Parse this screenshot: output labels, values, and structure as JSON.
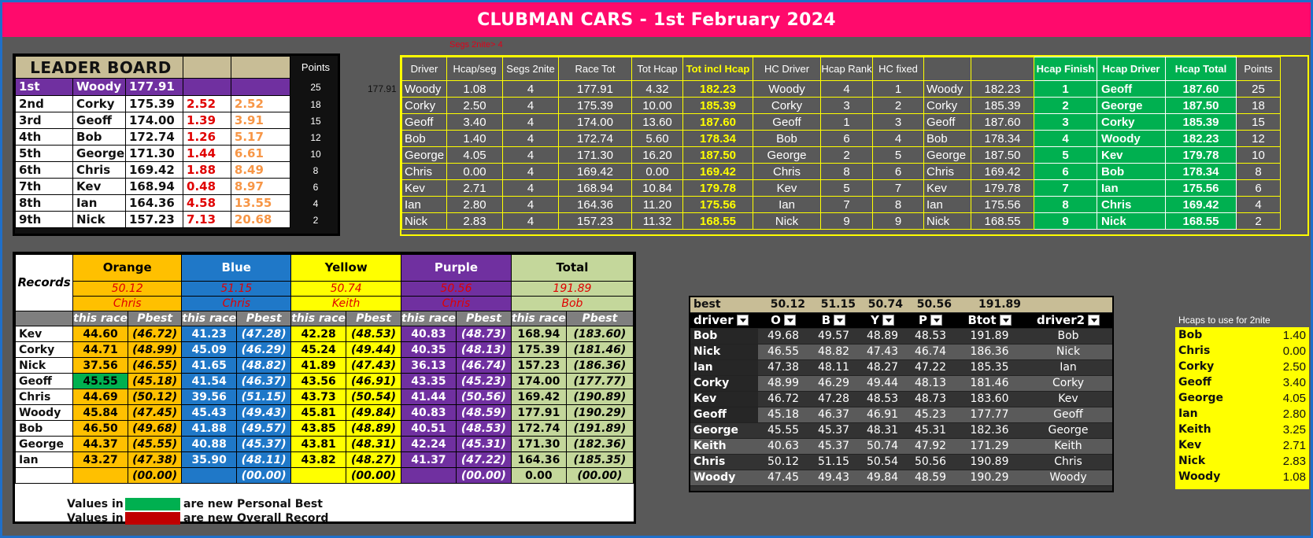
{
  "title": "CLUBMAN CARS - 1st February 2024",
  "segs_note": "Segs 2nite>    4",
  "leaderboard": {
    "title": "LEADER BOARD",
    "points_header": "Points",
    "side_value": "177.91",
    "rows": [
      {
        "pos": "1st",
        "name": "Woody",
        "total": "177.91",
        "gap": "",
        "cum": "",
        "points": "25"
      },
      {
        "pos": "2nd",
        "name": "Corky",
        "total": "175.39",
        "gap": "2.52",
        "cum": "2.52",
        "points": "18"
      },
      {
        "pos": "3rd",
        "name": "Geoff",
        "total": "174.00",
        "gap": "1.39",
        "cum": "3.91",
        "points": "15"
      },
      {
        "pos": "4th",
        "name": "Bob",
        "total": "172.74",
        "gap": "1.26",
        "cum": "5.17",
        "points": "12"
      },
      {
        "pos": "5th",
        "name": "George",
        "total": "171.30",
        "gap": "1.44",
        "cum": "6.61",
        "points": "10"
      },
      {
        "pos": "6th",
        "name": "Chris",
        "total": "169.42",
        "gap": "1.88",
        "cum": "8.49",
        "points": "8"
      },
      {
        "pos": "7th",
        "name": "Kev",
        "total": "168.94",
        "gap": "0.48",
        "cum": "8.97",
        "points": "6"
      },
      {
        "pos": "8th",
        "name": "Ian",
        "total": "164.36",
        "gap": "4.58",
        "cum": "13.55",
        "points": "4"
      },
      {
        "pos": "9th",
        "name": "Nick",
        "total": "157.23",
        "gap": "7.13",
        "cum": "20.68",
        "points": "2"
      }
    ]
  },
  "results": {
    "headers": [
      "Driver",
      "Hcap/seg",
      "Segs 2nite",
      "Race Tot",
      "Tot Hcap",
      "Tot incl Hcap",
      "HC Driver",
      "Hcap Rank",
      "HC fixed",
      "",
      "",
      "Hcap Finish",
      "Hcap Driver",
      "Hcap Total",
      "Points"
    ],
    "rows": [
      [
        "Woody",
        "1.08",
        "4",
        "177.91",
        "4.32",
        "182.23",
        "Woody",
        "4",
        "1",
        "Woody",
        "182.23",
        "1",
        "Geoff",
        "187.60",
        "25"
      ],
      [
        "Corky",
        "2.50",
        "4",
        "175.39",
        "10.00",
        "185.39",
        "Corky",
        "3",
        "2",
        "Corky",
        "185.39",
        "2",
        "George",
        "187.50",
        "18"
      ],
      [
        "Geoff",
        "3.40",
        "4",
        "174.00",
        "13.60",
        "187.60",
        "Geoff",
        "1",
        "3",
        "Geoff",
        "187.60",
        "3",
        "Corky",
        "185.39",
        "15"
      ],
      [
        "Bob",
        "1.40",
        "4",
        "172.74",
        "5.60",
        "178.34",
        "Bob",
        "6",
        "4",
        "Bob",
        "178.34",
        "4",
        "Woody",
        "182.23",
        "12"
      ],
      [
        "George",
        "4.05",
        "4",
        "171.30",
        "16.20",
        "187.50",
        "George",
        "2",
        "5",
        "George",
        "187.50",
        "5",
        "Kev",
        "179.78",
        "10"
      ],
      [
        "Chris",
        "0.00",
        "4",
        "169.42",
        "0.00",
        "169.42",
        "Chris",
        "8",
        "6",
        "Chris",
        "169.42",
        "6",
        "Bob",
        "178.34",
        "8"
      ],
      [
        "Kev",
        "2.71",
        "4",
        "168.94",
        "10.84",
        "179.78",
        "Kev",
        "5",
        "7",
        "Kev",
        "179.78",
        "7",
        "Ian",
        "175.56",
        "6"
      ],
      [
        "Ian",
        "2.80",
        "4",
        "164.36",
        "11.20",
        "175.56",
        "Ian",
        "7",
        "8",
        "Ian",
        "175.56",
        "8",
        "Chris",
        "169.42",
        "4"
      ],
      [
        "Nick",
        "2.83",
        "4",
        "157.23",
        "11.32",
        "168.55",
        "Nick",
        "9",
        "9",
        "Nick",
        "168.55",
        "9",
        "Nick",
        "168.55",
        "2"
      ]
    ]
  },
  "records": {
    "label": "Records",
    "colors": [
      "Orange",
      "Blue",
      "Yellow",
      "Purple",
      "Total"
    ],
    "record_values": [
      "50.12",
      "51.15",
      "50.74",
      "50.56",
      "191.89"
    ],
    "record_holders": [
      "Chris",
      "Chris",
      "Keith",
      "Chris",
      "Bob"
    ],
    "sub_headers": [
      "this race",
      "Pbest",
      "this race",
      "Pbest",
      "this race",
      "Pbest",
      "this race",
      "Pbest",
      "this race",
      "Pbest"
    ],
    "rows": [
      {
        "name": "Kev",
        "v": [
          "44.60",
          "(46.72)",
          "41.23",
          "(47.28)",
          "42.28",
          "(48.53)",
          "40.83",
          "(48.73)",
          "168.94",
          "(183.60)"
        ]
      },
      {
        "name": "Corky",
        "v": [
          "44.71",
          "(48.99)",
          "45.09",
          "(46.29)",
          "45.24",
          "(49.44)",
          "40.35",
          "(48.13)",
          "175.39",
          "(181.46)"
        ]
      },
      {
        "name": "Nick",
        "v": [
          "37.56",
          "(46.55)",
          "41.65",
          "(48.82)",
          "41.89",
          "(47.43)",
          "36.13",
          "(46.74)",
          "157.23",
          "(186.36)"
        ]
      },
      {
        "name": "Geoff",
        "v": [
          "45.55",
          "(45.18)",
          "41.54",
          "(46.37)",
          "43.56",
          "(46.91)",
          "43.35",
          "(45.23)",
          "174.00",
          "(177.77)"
        ]
      },
      {
        "name": "Chris",
        "v": [
          "44.69",
          "(50.12)",
          "39.56",
          "(51.15)",
          "43.73",
          "(50.54)",
          "41.44",
          "(50.56)",
          "169.42",
          "(190.89)"
        ]
      },
      {
        "name": "Woody",
        "v": [
          "45.84",
          "(47.45)",
          "45.43",
          "(49.43)",
          "45.81",
          "(49.84)",
          "40.83",
          "(48.59)",
          "177.91",
          "(190.29)"
        ]
      },
      {
        "name": "Bob",
        "v": [
          "46.50",
          "(49.68)",
          "41.88",
          "(49.57)",
          "43.85",
          "(48.89)",
          "40.51",
          "(48.53)",
          "172.74",
          "(191.89)"
        ]
      },
      {
        "name": "George",
        "v": [
          "44.37",
          "(45.55)",
          "40.88",
          "(45.37)",
          "43.81",
          "(48.31)",
          "42.24",
          "(45.31)",
          "171.30",
          "(182.36)"
        ]
      },
      {
        "name": "Ian",
        "v": [
          "43.27",
          "(47.38)",
          "35.90",
          "(48.11)",
          "43.82",
          "(48.27)",
          "41.37",
          "(47.22)",
          "164.36",
          "(185.35)"
        ]
      },
      {
        "name": "",
        "v": [
          "",
          "(00.00)",
          "",
          "(00.00)",
          "",
          "(00.00)",
          "",
          "(00.00)",
          "0.00",
          "(00.00)"
        ]
      }
    ],
    "legend": [
      {
        "prefix": "Values in",
        "suffix": "are new Personal Best",
        "color": "#00b050"
      },
      {
        "prefix": "Values in",
        "suffix": "are new Overall Record",
        "color": "#c00000"
      }
    ]
  },
  "stats": {
    "best_label": "best",
    "best_values": [
      "50.12",
      "51.15",
      "50.74",
      "50.56",
      "191.89"
    ],
    "headers": [
      "driver",
      "O",
      "B",
      "Y",
      "P",
      "Btot",
      "driver2"
    ],
    "rows": [
      [
        "Bob",
        "49.68",
        "49.57",
        "48.89",
        "48.53",
        "191.89",
        "Bob"
      ],
      [
        "Nick",
        "46.55",
        "48.82",
        "47.43",
        "46.74",
        "186.36",
        "Nick"
      ],
      [
        "Ian",
        "47.38",
        "48.11",
        "48.27",
        "47.22",
        "185.35",
        "Ian"
      ],
      [
        "Corky",
        "48.99",
        "46.29",
        "49.44",
        "48.13",
        "181.46",
        "Corky"
      ],
      [
        "Kev",
        "46.72",
        "47.28",
        "48.53",
        "48.73",
        "183.60",
        "Kev"
      ],
      [
        "Geoff",
        "45.18",
        "46.37",
        "46.91",
        "45.23",
        "177.77",
        "Geoff"
      ],
      [
        "George",
        "45.55",
        "45.37",
        "48.31",
        "45.31",
        "182.36",
        "George"
      ],
      [
        "Keith",
        "40.63",
        "45.37",
        "50.74",
        "47.92",
        "171.29",
        "Keith"
      ],
      [
        "Chris",
        "50.12",
        "51.15",
        "50.54",
        "50.56",
        "190.89",
        "Chris"
      ],
      [
        "Woody",
        "47.45",
        "49.43",
        "49.84",
        "48.59",
        "190.29",
        "Woody"
      ]
    ]
  },
  "hcaps": {
    "title": "Hcaps to use for 2nite",
    "rows": [
      [
        "Bob",
        "1.40"
      ],
      [
        "Chris",
        "0.00"
      ],
      [
        "Corky",
        "2.50"
      ],
      [
        "Geoff",
        "3.40"
      ],
      [
        "George",
        "4.05"
      ],
      [
        "Ian",
        "2.80"
      ],
      [
        "Keith",
        "3.25"
      ],
      [
        "Kev",
        "2.71"
      ],
      [
        "Nick",
        "2.83"
      ],
      [
        "Woody",
        "1.08"
      ]
    ]
  }
}
